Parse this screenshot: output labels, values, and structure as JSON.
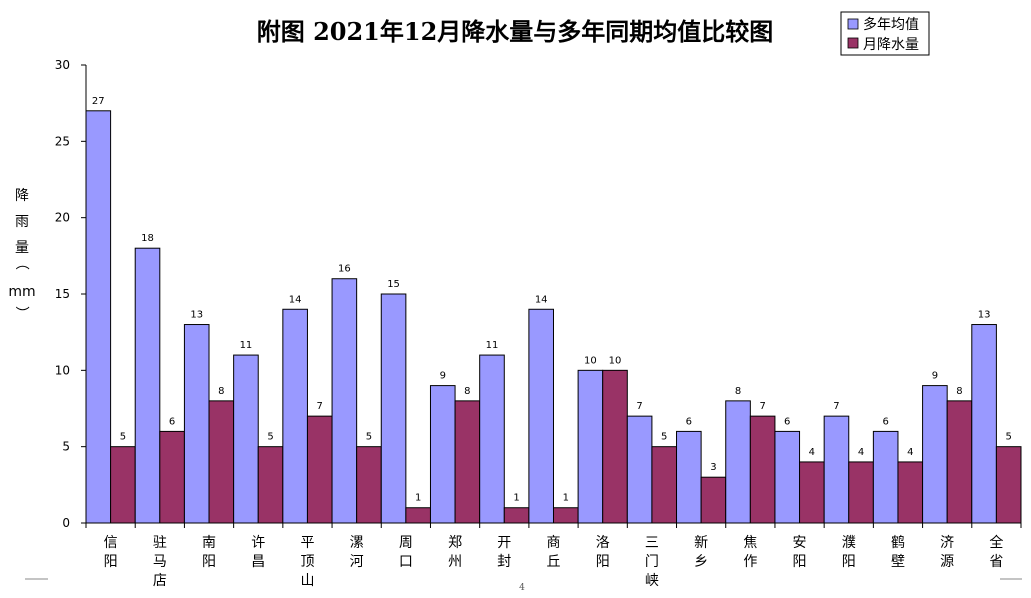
{
  "chart_data": {
    "type": "bar",
    "title": "附图      2021年12月降水量与多年同期均值比较图",
    "ylabel": [
      "降",
      "雨",
      "量",
      "（",
      "mm",
      "）"
    ],
    "ylim": [
      0,
      30
    ],
    "yticks": [
      0,
      5,
      10,
      15,
      20,
      25,
      30
    ],
    "legend_position": "top-right",
    "categories": [
      [
        "信",
        "阳"
      ],
      [
        "驻",
        "马",
        "店"
      ],
      [
        "南",
        "阳"
      ],
      [
        "许",
        "昌"
      ],
      [
        "平",
        "顶",
        "山"
      ],
      [
        "漯",
        "河"
      ],
      [
        "周",
        "口"
      ],
      [
        "郑",
        "州"
      ],
      [
        "开",
        "封"
      ],
      [
        "商",
        "丘"
      ],
      [
        "洛",
        "阳"
      ],
      [
        "三",
        "门",
        "峡"
      ],
      [
        "新",
        "乡"
      ],
      [
        "焦",
        "作"
      ],
      [
        "安",
        "阳"
      ],
      [
        "濮",
        "阳"
      ],
      [
        "鹤",
        "壁"
      ],
      [
        "济",
        "源"
      ],
      [
        "全",
        "省"
      ]
    ],
    "series": [
      {
        "name": "多年均值",
        "color": "#9999ff",
        "values": [
          27,
          18,
          13,
          11,
          14,
          16,
          15,
          9,
          11,
          14,
          10,
          7,
          6,
          8,
          6,
          7,
          6,
          9,
          13
        ]
      },
      {
        "name": "月降水量",
        "color": "#993366",
        "values": [
          5,
          6,
          8,
          5,
          7,
          5,
          1,
          8,
          1,
          1,
          10,
          5,
          3,
          7,
          4,
          4,
          4,
          8,
          5
        ]
      }
    ],
    "grid": false
  },
  "page_marks": {
    "page_number": "4"
  }
}
